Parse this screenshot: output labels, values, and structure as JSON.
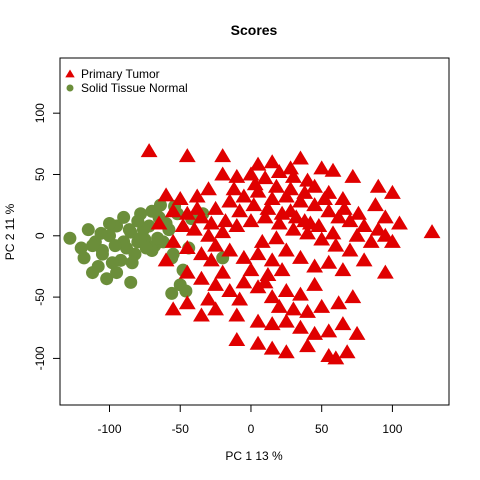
{
  "chart_data": {
    "type": "scatter",
    "title": "Scores",
    "xlabel": "PC 1 13 %",
    "ylabel": "PC 2 11 %",
    "xlim": [
      -135,
      140
    ],
    "ylim": [
      -138,
      145
    ],
    "x_ticks": [
      -100,
      -50,
      0,
      50,
      100
    ],
    "y_ticks": [
      -100,
      -50,
      0,
      50,
      100
    ],
    "x_tick_labels": [
      "-100",
      "-50",
      "0",
      "50",
      "100"
    ],
    "y_tick_labels": [
      "-100",
      "-50",
      "0",
      "50",
      "100"
    ],
    "grid": false,
    "legend": {
      "position": "top-left",
      "entries": [
        {
          "label": "Primary Tumor",
          "marker": "triangle",
          "color": "#e00000"
        },
        {
          "label": "Solid Tissue Normal",
          "marker": "circle",
          "color": "#6b8e3a"
        }
      ]
    },
    "series": [
      {
        "name": "Primary Tumor",
        "marker": "triangle",
        "color": "#e00000",
        "points": [
          [
            -72,
            69
          ],
          [
            -45,
            65
          ],
          [
            -20,
            65
          ],
          [
            5,
            58
          ],
          [
            15,
            60
          ],
          [
            28,
            55
          ],
          [
            35,
            63
          ],
          [
            50,
            55
          ],
          [
            58,
            53
          ],
          [
            72,
            48
          ],
          [
            90,
            40
          ],
          [
            100,
            35
          ],
          [
            -20,
            50
          ],
          [
            -10,
            48
          ],
          [
            0,
            50
          ],
          [
            10,
            47
          ],
          [
            20,
            52
          ],
          [
            30,
            48
          ],
          [
            40,
            45
          ],
          [
            45,
            40
          ],
          [
            55,
            35
          ],
          [
            65,
            30
          ],
          [
            -30,
            38
          ],
          [
            -38,
            32
          ],
          [
            -50,
            30
          ],
          [
            -60,
            33
          ],
          [
            -55,
            20
          ],
          [
            -45,
            18
          ],
          [
            -35,
            15
          ],
          [
            -25,
            22
          ],
          [
            -15,
            28
          ],
          [
            -5,
            32
          ],
          [
            5,
            36
          ],
          [
            15,
            30
          ],
          [
            25,
            32
          ],
          [
            35,
            28
          ],
          [
            45,
            25
          ],
          [
            55,
            20
          ],
          [
            62,
            15
          ],
          [
            70,
            12
          ],
          [
            80,
            8
          ],
          [
            90,
            5
          ],
          [
            95,
            0
          ],
          [
            105,
            10
          ],
          [
            -40,
            5
          ],
          [
            -30,
            0
          ],
          [
            -20,
            3
          ],
          [
            -10,
            8
          ],
          [
            0,
            12
          ],
          [
            10,
            15
          ],
          [
            20,
            10
          ],
          [
            30,
            5
          ],
          [
            40,
            2
          ],
          [
            50,
            -3
          ],
          [
            60,
            -8
          ],
          [
            70,
            -12
          ],
          [
            75,
            0
          ],
          [
            85,
            -5
          ],
          [
            100,
            -5
          ],
          [
            128,
            3
          ],
          [
            -55,
            -5
          ],
          [
            -45,
            -10
          ],
          [
            -35,
            -15
          ],
          [
            -25,
            -8
          ],
          [
            -15,
            -12
          ],
          [
            -5,
            -18
          ],
          [
            5,
            -15
          ],
          [
            15,
            -20
          ],
          [
            25,
            -12
          ],
          [
            35,
            -18
          ],
          [
            45,
            -25
          ],
          [
            55,
            -22
          ],
          [
            65,
            -28
          ],
          [
            80,
            -20
          ],
          [
            95,
            -30
          ],
          [
            -45,
            -30
          ],
          [
            -35,
            -35
          ],
          [
            -25,
            -40
          ],
          [
            -15,
            -45
          ],
          [
            -5,
            -38
          ],
          [
            5,
            -42
          ],
          [
            15,
            -50
          ],
          [
            25,
            -45
          ],
          [
            35,
            -48
          ],
          [
            45,
            -40
          ],
          [
            -55,
            -60
          ],
          [
            -45,
            -55
          ],
          [
            -35,
            -65
          ],
          [
            -25,
            -60
          ],
          [
            -10,
            -65
          ],
          [
            5,
            -70
          ],
          [
            15,
            -72
          ],
          [
            25,
            -70
          ],
          [
            35,
            -75
          ],
          [
            45,
            -80
          ],
          [
            55,
            -78
          ],
          [
            65,
            -72
          ],
          [
            75,
            -80
          ],
          [
            -10,
            -85
          ],
          [
            5,
            -88
          ],
          [
            15,
            -92
          ],
          [
            25,
            -95
          ],
          [
            40,
            -90
          ],
          [
            55,
            -98
          ],
          [
            60,
            -100
          ],
          [
            68,
            -95
          ],
          [
            12,
            -32
          ],
          [
            20,
            -58
          ],
          [
            -8,
            -52
          ],
          [
            30,
            -60
          ],
          [
            22,
            -28
          ],
          [
            -28,
            -20
          ],
          [
            8,
            -5
          ],
          [
            18,
            -2
          ],
          [
            28,
            20
          ],
          [
            38,
            12
          ],
          [
            48,
            8
          ],
          [
            58,
            2
          ],
          [
            -18,
            12
          ],
          [
            -8,
            20
          ],
          [
            2,
            25
          ],
          [
            12,
            22
          ],
          [
            22,
            18
          ],
          [
            32,
            15
          ],
          [
            42,
            10
          ],
          [
            -38,
            22
          ],
          [
            -28,
            10
          ],
          [
            -48,
            8
          ],
          [
            0,
            -28
          ],
          [
            10,
            -38
          ],
          [
            -20,
            -30
          ],
          [
            -30,
            -52
          ],
          [
            40,
            -62
          ],
          [
            50,
            -58
          ],
          [
            62,
            -55
          ],
          [
            72,
            -50
          ],
          [
            -60,
            -20
          ],
          [
            -65,
            10
          ],
          [
            3,
            42
          ],
          [
            18,
            40
          ],
          [
            -12,
            38
          ],
          [
            28,
            38
          ],
          [
            38,
            35
          ],
          [
            52,
            30
          ],
          [
            66,
            22
          ],
          [
            76,
            18
          ],
          [
            88,
            25
          ],
          [
            95,
            15
          ]
        ]
      },
      {
        "name": "Solid Tissue Normal",
        "marker": "circle",
        "color": "#6b8e3a",
        "points": [
          [
            -128,
            -2
          ],
          [
            -120,
            -10
          ],
          [
            -115,
            5
          ],
          [
            -110,
            -5
          ],
          [
            -105,
            -15
          ],
          [
            -100,
            0
          ],
          [
            -95,
            8
          ],
          [
            -92,
            -20
          ],
          [
            -88,
            -10
          ],
          [
            -85,
            3
          ],
          [
            -80,
            -5
          ],
          [
            -78,
            18
          ],
          [
            -75,
            -3
          ],
          [
            -72,
            8
          ],
          [
            -70,
            20
          ],
          [
            -68,
            -8
          ],
          [
            -65,
            15
          ],
          [
            -62,
            -5
          ],
          [
            -58,
            5
          ],
          [
            -55,
            -15
          ],
          [
            -52,
            18
          ],
          [
            -50,
            -40
          ],
          [
            -112,
            -30
          ],
          [
            -108,
            -25
          ],
          [
            -118,
            -18
          ],
          [
            -102,
            -35
          ],
          [
            -98,
            -22
          ],
          [
            -90,
            -5
          ],
          [
            -82,
            -15
          ],
          [
            -76,
            5
          ],
          [
            -66,
            -2
          ],
          [
            -60,
            10
          ],
          [
            -56,
            -18
          ],
          [
            -48,
            -28
          ],
          [
            -44,
            -10
          ],
          [
            -20,
            -18
          ],
          [
            -85,
            -38
          ],
          [
            -95,
            -30
          ],
          [
            -105,
            -12
          ],
          [
            -100,
            10
          ],
          [
            -90,
            15
          ],
          [
            -80,
            12
          ],
          [
            -70,
            -12
          ],
          [
            -84,
            -22
          ],
          [
            -74,
            -10
          ],
          [
            -96,
            -8
          ],
          [
            -106,
            2
          ],
          [
            -112,
            -8
          ],
          [
            -86,
            5
          ],
          [
            -78,
            -2
          ],
          [
            -54,
            24
          ],
          [
            -64,
            25
          ],
          [
            -46,
            -45
          ],
          [
            -56,
            -47
          ],
          [
            -34,
            18
          ],
          [
            -42,
            14
          ]
        ]
      }
    ]
  }
}
